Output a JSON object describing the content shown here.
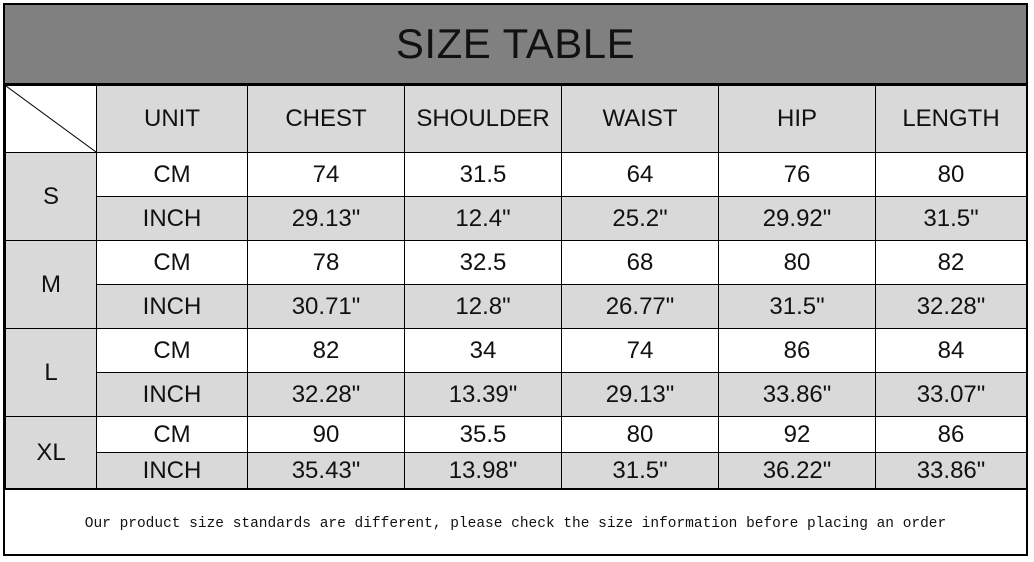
{
  "title": "SIZE TABLE",
  "columns": [
    "UNIT",
    "CHEST",
    "SHOULDER",
    "WAIST",
    "HIP",
    "LENGTH"
  ],
  "sizes": [
    {
      "size": "S",
      "rows": [
        {
          "unit": "CM",
          "values": [
            "74",
            "31.5",
            "64",
            "76",
            "80"
          ]
        },
        {
          "unit": "INCH",
          "values": [
            "29.13\"",
            "12.4\"",
            "25.2\"",
            "29.92\"",
            "31.5\""
          ]
        }
      ]
    },
    {
      "size": "M",
      "rows": [
        {
          "unit": "CM",
          "values": [
            "78",
            "32.5",
            "68",
            "80",
            "82"
          ]
        },
        {
          "unit": "INCH",
          "values": [
            "30.71\"",
            "12.8\"",
            "26.77\"",
            "31.5\"",
            "32.28\""
          ]
        }
      ]
    },
    {
      "size": "L",
      "rows": [
        {
          "unit": "CM",
          "values": [
            "82",
            "34",
            "74",
            "86",
            "84"
          ]
        },
        {
          "unit": "INCH",
          "values": [
            "32.28\"",
            "13.39\"",
            "29.13\"",
            "33.86\"",
            "33.07\""
          ]
        }
      ]
    },
    {
      "size": "XL",
      "rows": [
        {
          "unit": "CM",
          "values": [
            "90",
            "35.5",
            "80",
            "92",
            "86"
          ]
        },
        {
          "unit": "INCH",
          "values": [
            "35.43\"",
            "13.98\"",
            "31.5\"",
            "36.22\"",
            "33.86\""
          ]
        }
      ]
    }
  ],
  "footer_note": "Our product size standards are different, please check the size information before placing an order",
  "colors": {
    "title_bg": "#808080",
    "header_bg": "#d9d9d9",
    "inch_row_bg": "#d9d9d9"
  }
}
